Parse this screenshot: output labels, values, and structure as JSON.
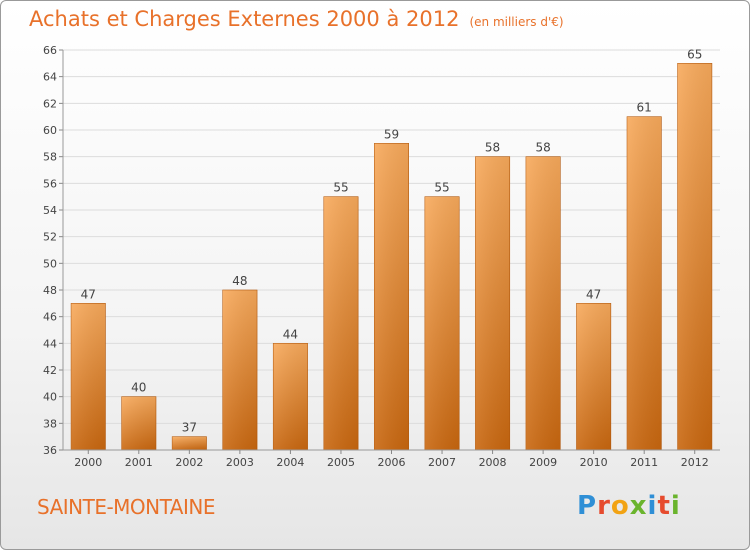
{
  "header": {
    "title": "Achats et Charges Externes 2000 à 2012",
    "unit": "(en milliers d'€)"
  },
  "footer": {
    "city": "SAINTE-MONTAINE",
    "logo": "Proxiti"
  },
  "colors": {
    "accent": "#e8712a",
    "bar_light": "#f7a85a",
    "bar_dark": "#cc6a14"
  },
  "chart_data": {
    "type": "bar",
    "title": "Achats et Charges Externes 2000 à 2012",
    "subtitle": "(en milliers d'€)",
    "xlabel": "",
    "ylabel": "",
    "categories": [
      "2000",
      "2001",
      "2002",
      "2003",
      "2004",
      "2005",
      "2006",
      "2007",
      "2008",
      "2009",
      "2010",
      "2011",
      "2012"
    ],
    "values": [
      47,
      40,
      37,
      48,
      44,
      55,
      59,
      55,
      58,
      58,
      47,
      61,
      65
    ],
    "ylim": [
      36,
      66
    ],
    "yticks": [
      36,
      38,
      40,
      42,
      44,
      46,
      48,
      50,
      52,
      54,
      56,
      58,
      60,
      62,
      64,
      66
    ],
    "grid": true,
    "legend": "none"
  }
}
